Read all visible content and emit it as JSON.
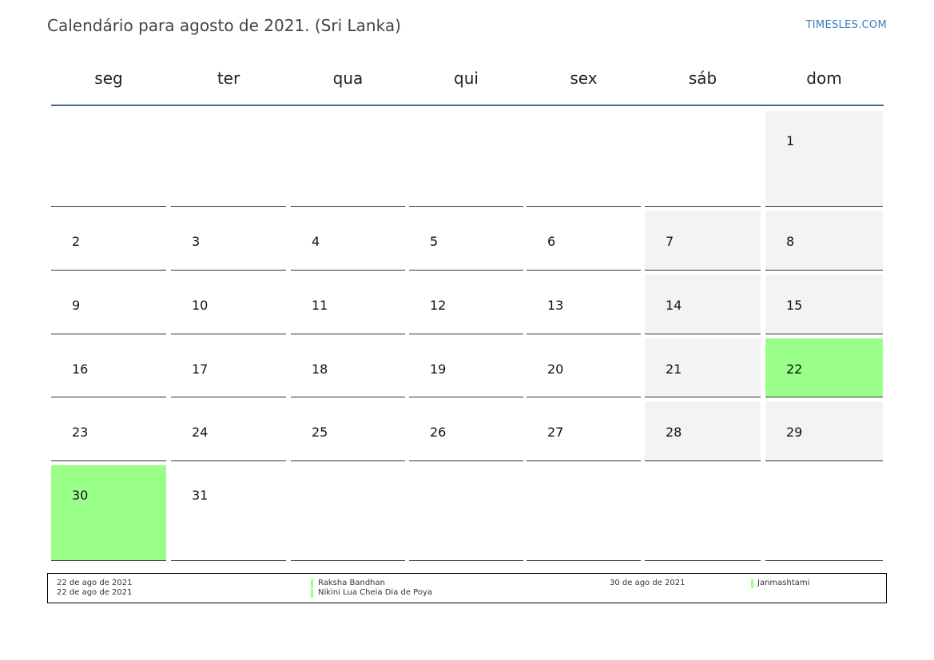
{
  "title": "Calendário para agosto de 2021. (Sri Lanka)",
  "brand": "TIMESLES.COM",
  "colors": {
    "header_line": "#4a6890",
    "weekend_bg": "#f3f3f3",
    "holiday_bg": "#99ff88",
    "brand": "#3a7bbf"
  },
  "weekdays": [
    "seg",
    "ter",
    "qua",
    "qui",
    "sex",
    "sáb",
    "dom"
  ],
  "weeks": [
    [
      "",
      "",
      "",
      "",
      "",
      "",
      "1"
    ],
    [
      "2",
      "3",
      "4",
      "5",
      "6",
      "7",
      "8"
    ],
    [
      "9",
      "10",
      "11",
      "12",
      "13",
      "14",
      "15"
    ],
    [
      "16",
      "17",
      "18",
      "19",
      "20",
      "21",
      "22"
    ],
    [
      "23",
      "24",
      "25",
      "26",
      "27",
      "28",
      "29"
    ],
    [
      "30",
      "31",
      "",
      "",
      "",
      "",
      ""
    ]
  ],
  "highlighted_days": [
    "22",
    "30"
  ],
  "legend": {
    "left_dates": [
      "22 de ago de 2021",
      "22 de ago de 2021"
    ],
    "left_names": [
      "Raksha Bandhan",
      "Nikini Lua Cheia Dia de Poya"
    ],
    "right_dates": [
      "30 de ago de 2021"
    ],
    "right_names": [
      "Janmashtami"
    ]
  }
}
